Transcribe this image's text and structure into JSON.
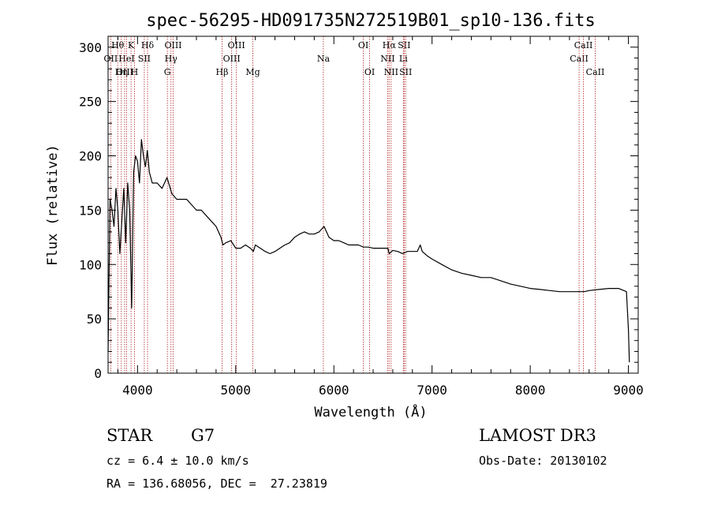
{
  "chart_data": {
    "type": "line",
    "title": "spec-56295-HD091735N272519B01_sp10-136.fits",
    "xlabel": "Wavelength (Å)",
    "ylabel": "Flux (relative)",
    "xlim": [
      3700,
      9100
    ],
    "ylim": [
      0,
      310
    ],
    "xticks": [
      4000,
      5000,
      6000,
      7000,
      8000,
      9000
    ],
    "yticks": [
      0,
      50,
      100,
      150,
      200,
      250,
      300
    ],
    "series": [
      {
        "name": "flux",
        "x": [
          3700,
          3720,
          3740,
          3760,
          3780,
          3800,
          3820,
          3840,
          3860,
          3880,
          3900,
          3920,
          3940,
          3960,
          3980,
          4000,
          4020,
          4040,
          4060,
          4080,
          4100,
          4120,
          4150,
          4200,
          4250,
          4300,
          4350,
          4400,
          4450,
          4500,
          4550,
          4600,
          4650,
          4700,
          4750,
          4800,
          4850,
          4870,
          4900,
          4950,
          5000,
          5050,
          5100,
          5150,
          5180,
          5200,
          5250,
          5300,
          5350,
          5400,
          5450,
          5500,
          5550,
          5600,
          5650,
          5700,
          5750,
          5800,
          5850,
          5900,
          5950,
          6000,
          6050,
          6100,
          6150,
          6200,
          6250,
          6300,
          6350,
          6400,
          6450,
          6500,
          6550,
          6563,
          6600,
          6650,
          6700,
          6750,
          6800,
          6850,
          6880,
          6900,
          6950,
          7000,
          7100,
          7200,
          7300,
          7400,
          7500,
          7600,
          7700,
          7800,
          7900,
          8000,
          8100,
          8200,
          8300,
          8400,
          8500,
          8550,
          8600,
          8700,
          8800,
          8900,
          8980,
          9000,
          9010
        ],
        "y": [
          20,
          160,
          150,
          135,
          170,
          150,
          110,
          140,
          170,
          120,
          175,
          150,
          60,
          185,
          200,
          195,
          175,
          215,
          200,
          190,
          205,
          185,
          175,
          175,
          170,
          180,
          165,
          160,
          160,
          160,
          155,
          150,
          150,
          145,
          140,
          135,
          125,
          118,
          120,
          122,
          115,
          115,
          118,
          115,
          112,
          118,
          115,
          112,
          110,
          112,
          115,
          118,
          120,
          125,
          128,
          130,
          128,
          128,
          130,
          135,
          125,
          122,
          122,
          120,
          118,
          118,
          118,
          116,
          116,
          115,
          115,
          115,
          115,
          110,
          113,
          112,
          110,
          112,
          112,
          112,
          118,
          112,
          108,
          105,
          100,
          95,
          92,
          90,
          88,
          88,
          85,
          82,
          80,
          78,
          77,
          76,
          75,
          75,
          75,
          75,
          76,
          77,
          78,
          78,
          75,
          40,
          10
        ]
      }
    ],
    "emission_lines": [
      {
        "label": "OII",
        "x": 3727,
        "row": 1
      },
      {
        "label": "Hθ",
        "x": 3798,
        "row": 0
      },
      {
        "label": "Hη",
        "x": 3835,
        "row": 2
      },
      {
        "label": "HeI",
        "x": 3889,
        "row": 1
      },
      {
        "label": "K",
        "x": 3934,
        "row": 0
      },
      {
        "label": "OIII",
        "x": 3869,
        "row": 2
      },
      {
        "label": "H",
        "x": 3969,
        "row": 2
      },
      {
        "label": "SII",
        "x": 4069,
        "row": 1
      },
      {
        "label": "Hδ",
        "x": 4102,
        "row": 0
      },
      {
        "label": "G",
        "x": 4304,
        "row": 2
      },
      {
        "label": "Hγ",
        "x": 4341,
        "row": 1
      },
      {
        "label": "OIII",
        "x": 4363,
        "row": 0
      },
      {
        "label": "Hβ",
        "x": 4861,
        "row": 2
      },
      {
        "label": "OIII",
        "x": 4959,
        "row": 1
      },
      {
        "label": "OIII",
        "x": 5007,
        "row": 0
      },
      {
        "label": "Mg",
        "x": 5175,
        "row": 2
      },
      {
        "label": "Na",
        "x": 5893,
        "row": 1
      },
      {
        "label": "OI",
        "x": 6300,
        "row": 0
      },
      {
        "label": "OI",
        "x": 6364,
        "row": 2
      },
      {
        "label": "NII",
        "x": 6548,
        "row": 1
      },
      {
        "label": "Hα",
        "x": 6563,
        "row": 0
      },
      {
        "label": "NII",
        "x": 6583,
        "row": 2
      },
      {
        "label": "Li",
        "x": 6708,
        "row": 1
      },
      {
        "label": "SII",
        "x": 6716,
        "row": 0
      },
      {
        "label": "SII",
        "x": 6731,
        "row": 2
      },
      {
        "label": "CaII",
        "x": 8498,
        "row": 1
      },
      {
        "label": "CaII",
        "x": 8542,
        "row": 0
      },
      {
        "label": "CaII",
        "x": 8662,
        "row": 2
      }
    ]
  },
  "info": {
    "class": "STAR",
    "subclass": "G7",
    "survey": "LAMOST DR3",
    "redshift": "cz = 6.4 ± 10.0 km/s",
    "obs_date": "Obs-Date: 20130102",
    "coords": "RA = 136.68056, DEC =  27.23819"
  }
}
